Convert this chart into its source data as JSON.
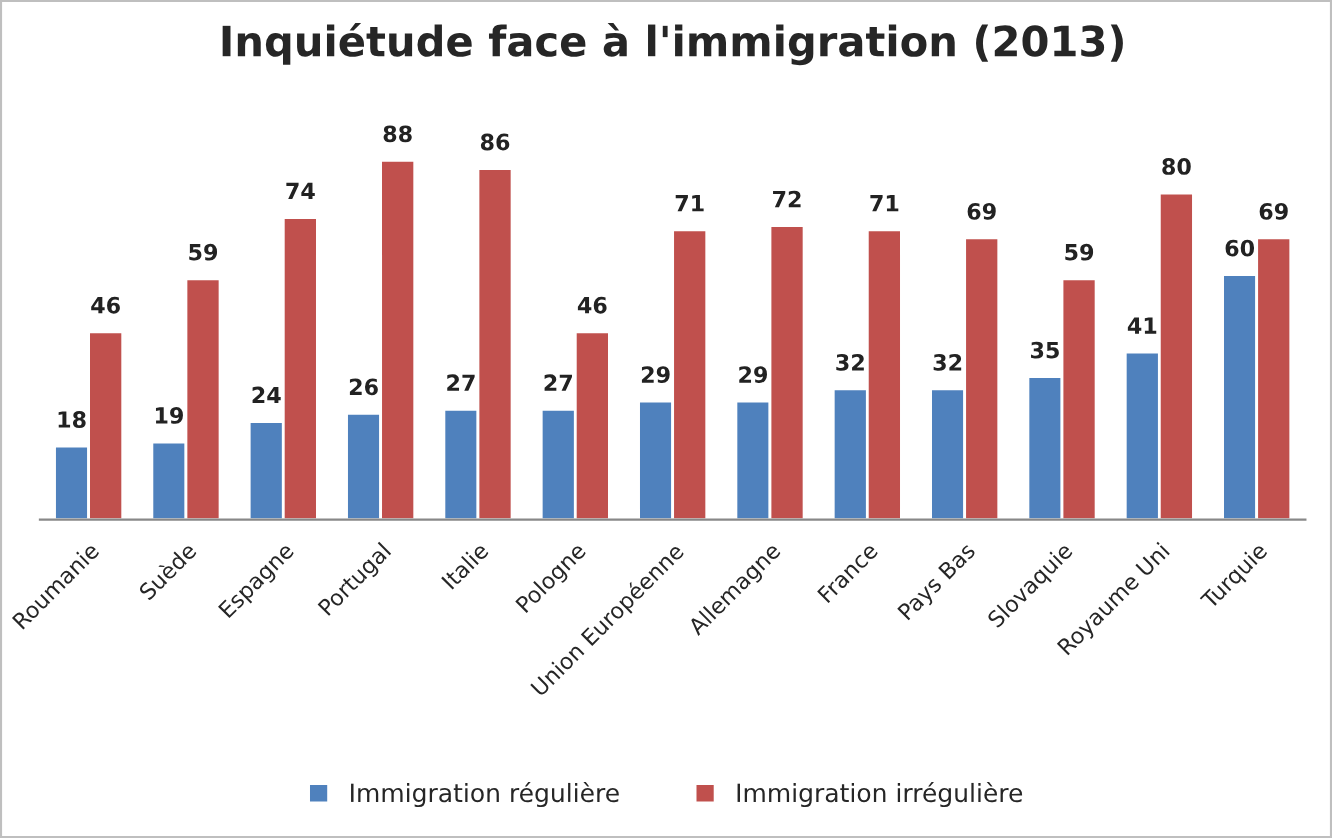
{
  "chart_data": {
    "type": "bar",
    "title": "Inquiétude face à l'immigration (2013)",
    "categories": [
      "Roumanie",
      "Suède",
      "Espagne",
      "Portugal",
      "Italie",
      "Pologne",
      "Union Européenne",
      "Allemagne",
      "France",
      "Pays Bas",
      "Slovaquie",
      "Royaume Uni",
      "Turquie"
    ],
    "series": [
      {
        "name": "Immigration régulière",
        "color": "#4f81bd",
        "values": [
          18,
          19,
          24,
          26,
          27,
          27,
          29,
          29,
          32,
          32,
          35,
          41,
          60
        ]
      },
      {
        "name": "Immigration irrégulière",
        "color": "#c0504d",
        "values": [
          46,
          59,
          74,
          88,
          86,
          46,
          71,
          72,
          71,
          69,
          59,
          80,
          69
        ]
      }
    ],
    "data_labels": true,
    "legend": "bottom",
    "grid": false
  }
}
